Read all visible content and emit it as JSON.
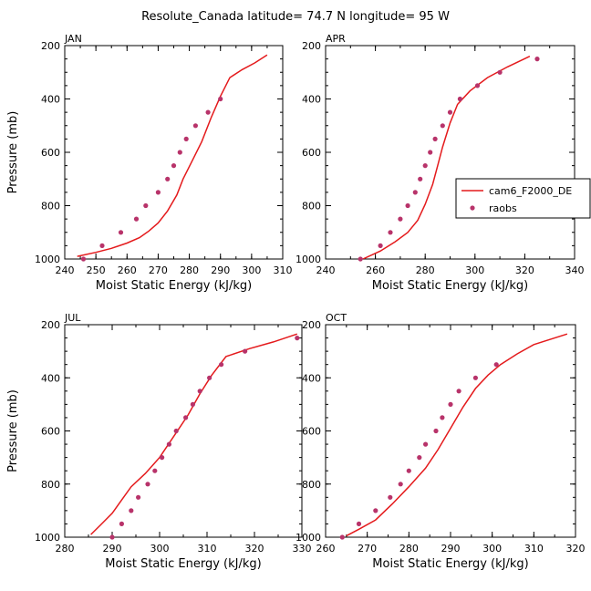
{
  "figure": {
    "title": "Resolute_Canada   latitude= 74.7 N longitude= 95 W"
  },
  "colors": {
    "model_line": "#e41a1c",
    "obs_marker": "#b8336a",
    "axis": "#000000"
  },
  "legend": {
    "placement": "right-of-APR-panel",
    "model_label": "cam6_F2000_DE",
    "obs_label": "raobs"
  },
  "chart_data": [
    {
      "type": "line",
      "panel": "JAN",
      "xlabel": "Moist Static Energy (kJ/kg)",
      "ylabel": "Pressure (mb)",
      "xlim": [
        240,
        310
      ],
      "ylim": [
        1000,
        200
      ],
      "xticks": [
        240,
        250,
        260,
        270,
        280,
        290,
        300,
        310
      ],
      "yticks": [
        200,
        400,
        600,
        800,
        1000
      ],
      "series": [
        {
          "name": "cam6_F2000_DE",
          "kind": "line",
          "points": [
            [
              244,
              990
            ],
            [
              250,
              975
            ],
            [
              255,
              960
            ],
            [
              260,
              940
            ],
            [
              264,
              920
            ],
            [
              267,
              895
            ],
            [
              270,
              865
            ],
            [
              273,
              820
            ],
            [
              276,
              760
            ],
            [
              278,
              700
            ],
            [
              281,
              630
            ],
            [
              284,
              560
            ],
            [
              287,
              470
            ],
            [
              290,
              390
            ],
            [
              293,
              320
            ],
            [
              297,
              290
            ],
            [
              301,
              265
            ],
            [
              305,
              235
            ]
          ]
        },
        {
          "name": "raobs",
          "kind": "scatter",
          "points": [
            [
              246,
              1000
            ],
            [
              252,
              950
            ],
            [
              258,
              900
            ],
            [
              263,
              850
            ],
            [
              266,
              800
            ],
            [
              270,
              750
            ],
            [
              273,
              700
            ],
            [
              275,
              650
            ],
            [
              277,
              600
            ],
            [
              279,
              550
            ],
            [
              282,
              500
            ],
            [
              286,
              450
            ],
            [
              290,
              400
            ]
          ]
        }
      ]
    },
    {
      "type": "line",
      "panel": "APR",
      "xlabel": "Moist Static Energy (kJ/kg)",
      "ylabel": "",
      "xlim": [
        240,
        340
      ],
      "ylim": [
        1000,
        200
      ],
      "xticks": [
        240,
        260,
        280,
        300,
        320,
        340
      ],
      "yticks": [
        200,
        400,
        600,
        800,
        1000
      ],
      "series": [
        {
          "name": "cam6_F2000_DE",
          "kind": "line",
          "points": [
            [
              255,
              1000
            ],
            [
              262,
              970
            ],
            [
              268,
              935
            ],
            [
              273,
              900
            ],
            [
              277,
              855
            ],
            [
              280,
              795
            ],
            [
              283,
              720
            ],
            [
              285,
              650
            ],
            [
              287,
              580
            ],
            [
              290,
              490
            ],
            [
              293,
              420
            ],
            [
              298,
              370
            ],
            [
              305,
              320
            ],
            [
              313,
              280
            ],
            [
              322,
              240
            ]
          ]
        },
        {
          "name": "raobs",
          "kind": "scatter",
          "points": [
            [
              254,
              1000
            ],
            [
              262,
              950
            ],
            [
              266,
              900
            ],
            [
              270,
              850
            ],
            [
              273,
              800
            ],
            [
              276,
              750
            ],
            [
              278,
              700
            ],
            [
              280,
              650
            ],
            [
              282,
              600
            ],
            [
              284,
              550
            ],
            [
              287,
              500
            ],
            [
              290,
              450
            ],
            [
              294,
              400
            ],
            [
              301,
              350
            ],
            [
              310,
              300
            ],
            [
              325,
              250
            ]
          ]
        }
      ]
    },
    {
      "type": "line",
      "panel": "JUL",
      "xlabel": "Moist Static Energy (kJ/kg)",
      "ylabel": "Pressure (mb)",
      "xlim": [
        280,
        330
      ],
      "ylim": [
        1000,
        200
      ],
      "xticks": [
        280,
        290,
        300,
        310,
        320,
        330
      ],
      "yticks": [
        200,
        400,
        600,
        800,
        1000
      ],
      "series": [
        {
          "name": "cam6_F2000_DE",
          "kind": "line",
          "points": [
            [
              285.5,
              990
            ],
            [
              287.5,
              955
            ],
            [
              290,
              910
            ],
            [
              292,
              860
            ],
            [
              294,
              810
            ],
            [
              297,
              760
            ],
            [
              300,
              700
            ],
            [
              303,
              620
            ],
            [
              306,
              540
            ],
            [
              308.5,
              460
            ],
            [
              311,
              390
            ],
            [
              314,
              320
            ],
            [
              319,
              290
            ],
            [
              324,
              265
            ],
            [
              329,
              235
            ]
          ]
        },
        {
          "name": "raobs",
          "kind": "scatter",
          "points": [
            [
              290,
              1000
            ],
            [
              292,
              950
            ],
            [
              294,
              900
            ],
            [
              295.5,
              850
            ],
            [
              297.5,
              800
            ],
            [
              299,
              750
            ],
            [
              300.5,
              700
            ],
            [
              302,
              650
            ],
            [
              303.5,
              600
            ],
            [
              305.5,
              550
            ],
            [
              307,
              500
            ],
            [
              308.5,
              450
            ],
            [
              310.5,
              400
            ],
            [
              313,
              350
            ],
            [
              318,
              300
            ],
            [
              329,
              250
            ]
          ]
        }
      ]
    },
    {
      "type": "line",
      "panel": "OCT",
      "xlabel": "Moist Static Energy (kJ/kg)",
      "ylabel": "",
      "xlim": [
        260,
        320
      ],
      "ylim": [
        1000,
        200
      ],
      "xticks": [
        260,
        270,
        280,
        290,
        300,
        310,
        320
      ],
      "yticks": [
        200,
        400,
        600,
        800,
        1000
      ],
      "series": [
        {
          "name": "cam6_F2000_DE",
          "kind": "line",
          "points": [
            [
              265,
              995
            ],
            [
              268,
              970
            ],
            [
              272,
              935
            ],
            [
              276,
              875
            ],
            [
              280,
              810
            ],
            [
              284,
              740
            ],
            [
              287,
              670
            ],
            [
              290,
              590
            ],
            [
              293,
              510
            ],
            [
              296,
              440
            ],
            [
              299,
              390
            ],
            [
              302,
              350
            ],
            [
              306,
              310
            ],
            [
              310,
              275
            ],
            [
              318,
              235
            ]
          ]
        },
        {
          "name": "raobs",
          "kind": "scatter",
          "points": [
            [
              264,
              1000
            ],
            [
              268,
              950
            ],
            [
              272,
              900
            ],
            [
              275.5,
              850
            ],
            [
              278,
              800
            ],
            [
              280,
              750
            ],
            [
              282.5,
              700
            ],
            [
              284,
              650
            ],
            [
              286.5,
              600
            ],
            [
              288,
              550
            ],
            [
              290,
              500
            ],
            [
              292,
              450
            ],
            [
              296,
              400
            ],
            [
              301,
              350
            ]
          ]
        }
      ]
    }
  ]
}
